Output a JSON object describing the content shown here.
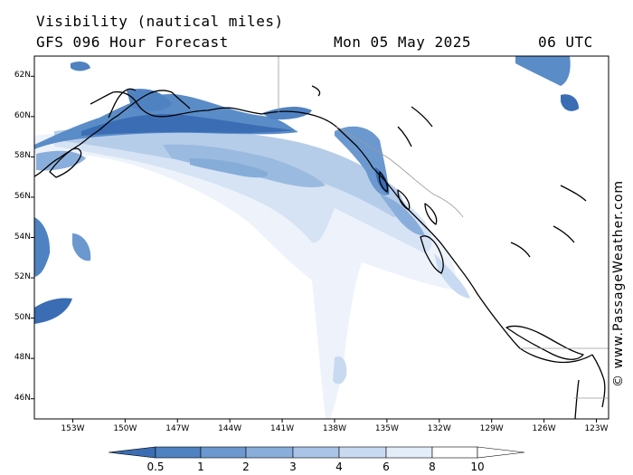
{
  "header": {
    "line1": "Visibility (nautical miles)",
    "model": "GFS 096 Hour Forecast",
    "date": "Mon 05 May 2025",
    "time": "06 UTC"
  },
  "credit": "© www.PassageWeather.com",
  "lat_ticks": [
    "62N",
    "60N",
    "58N",
    "56N",
    "54N",
    "52N",
    "50N",
    "48N",
    "46N"
  ],
  "lat_values": [
    62,
    60,
    58,
    56,
    54,
    52,
    50,
    48,
    46
  ],
  "lon_ticks": [
    "153W",
    "150W",
    "147W",
    "144W",
    "141W",
    "138W",
    "135W",
    "132W",
    "129W",
    "126W",
    "123W"
  ],
  "lon_values": [
    -153,
    -150,
    -147,
    -144,
    -141,
    -138,
    -135,
    -132,
    -129,
    -126,
    -123
  ],
  "colorbar": {
    "labels": [
      "0.5",
      "1",
      "2",
      "3",
      "4",
      "6",
      "8",
      "10"
    ],
    "colors": [
      "#3a6db3",
      "#4f82c1",
      "#6b98cf",
      "#8aaedb",
      "#a9c4e6",
      "#c8daf1",
      "#e3edf9",
      "#ffffff"
    ]
  },
  "colors": {
    "coast": "#000000",
    "border": "#9a9a9a",
    "frame": "#000000"
  }
}
